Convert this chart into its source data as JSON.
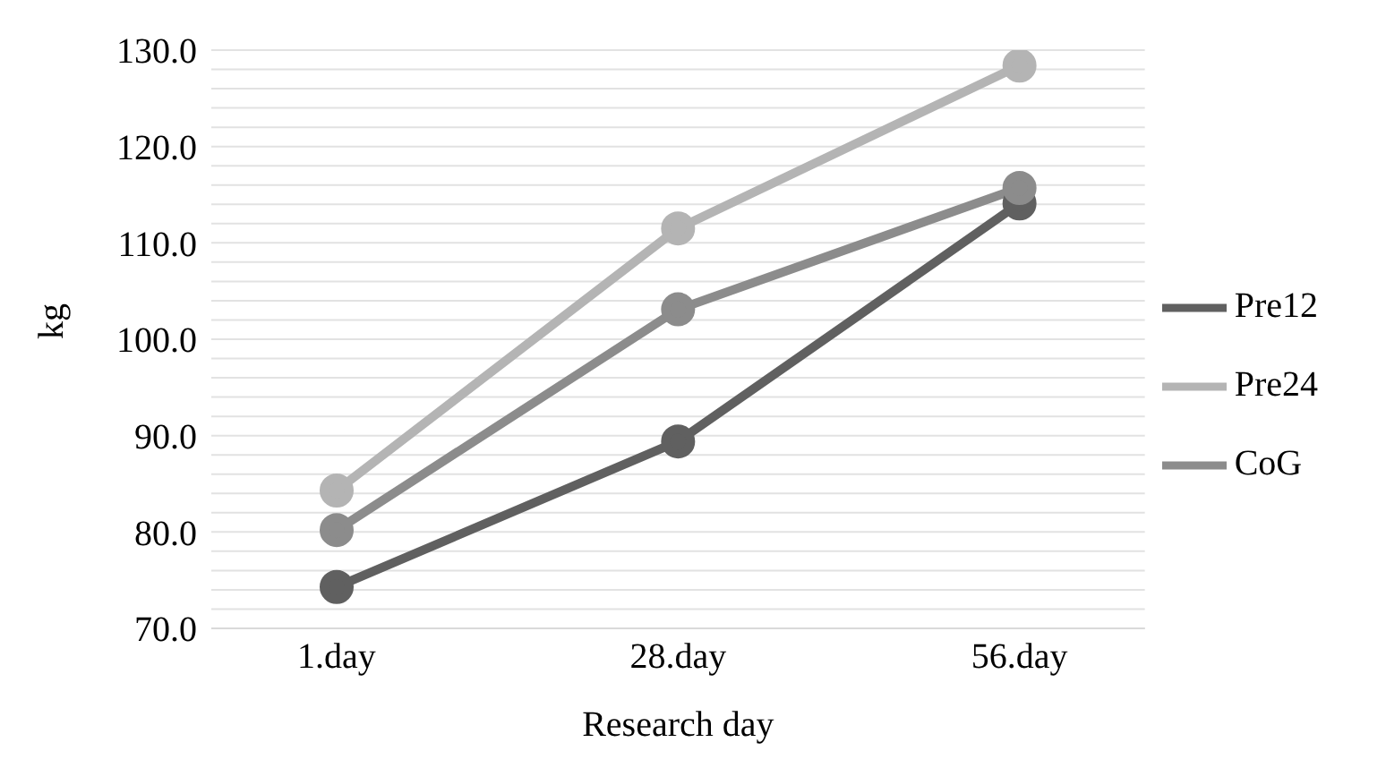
{
  "chart_data": {
    "type": "line",
    "xlabel": "Research day",
    "ylabel": "kg",
    "categories": [
      "1.day",
      "28.day",
      "56.day"
    ],
    "series": [
      {
        "name": "Pre12",
        "color": "#606060",
        "values": [
          74.3,
          89.4,
          114.1
        ]
      },
      {
        "name": "Pre24",
        "color": "#b4b4b4",
        "values": [
          84.3,
          111.5,
          128.4
        ]
      },
      {
        "name": "CoG",
        "color": "#8c8c8c",
        "values": [
          80.2,
          103.1,
          115.7
        ]
      }
    ],
    "ylim": [
      70,
      130
    ],
    "yticks": [
      {
        "value": 70,
        "label": "70.0"
      },
      {
        "value": 72,
        "label": null
      },
      {
        "value": 74,
        "label": null
      },
      {
        "value": 76,
        "label": null
      },
      {
        "value": 78,
        "label": null
      },
      {
        "value": 80,
        "label": "80.0"
      },
      {
        "value": 82,
        "label": null
      },
      {
        "value": 84,
        "label": null
      },
      {
        "value": 86,
        "label": null
      },
      {
        "value": 88,
        "label": null
      },
      {
        "value": 90,
        "label": "90.0"
      },
      {
        "value": 92,
        "label": null
      },
      {
        "value": 94,
        "label": null
      },
      {
        "value": 96,
        "label": null
      },
      {
        "value": 98,
        "label": null
      },
      {
        "value": 100,
        "label": "100.0"
      },
      {
        "value": 102,
        "label": null
      },
      {
        "value": 104,
        "label": null
      },
      {
        "value": 106,
        "label": null
      },
      {
        "value": 108,
        "label": null
      },
      {
        "value": 110,
        "label": "110.0"
      },
      {
        "value": 112,
        "label": null
      },
      {
        "value": 114,
        "label": null
      },
      {
        "value": 116,
        "label": null
      },
      {
        "value": 118,
        "label": null
      },
      {
        "value": 120,
        "label": "120.0"
      },
      {
        "value": 122,
        "label": null
      },
      {
        "value": 124,
        "label": null
      },
      {
        "value": 126,
        "label": null
      },
      {
        "value": 128,
        "label": null
      },
      {
        "value": 130,
        "label": "130.0"
      }
    ],
    "grid": "y",
    "legend": "right",
    "marker": "circle",
    "line_style": "solid"
  }
}
